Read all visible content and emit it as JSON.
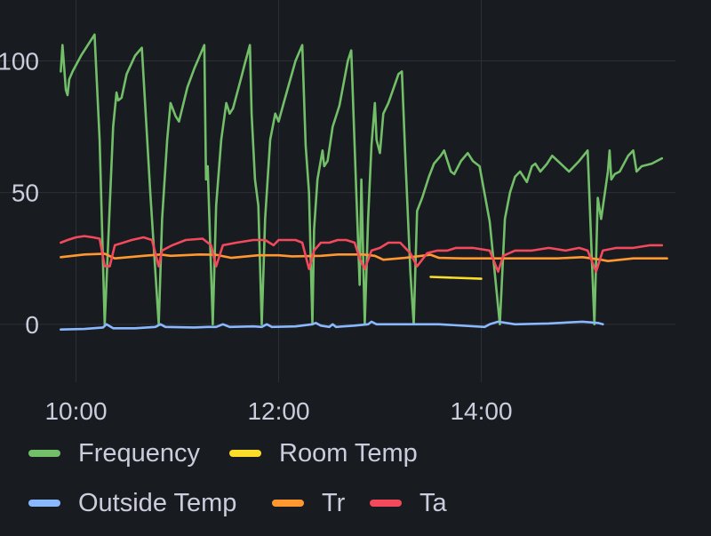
{
  "colors": {
    "background": "#181b1f",
    "grid": "#2c3036",
    "text": "#ccccdc"
  },
  "chart_data": {
    "type": "line",
    "title": "",
    "xlabel": "",
    "ylabel": "",
    "xlim": [
      "09:35",
      "15:55"
    ],
    "ylim": [
      -22,
      113
    ],
    "x_ticks": [
      "10:00",
      "12:00",
      "14:00"
    ],
    "y_ticks": [
      "0",
      "50",
      "100"
    ],
    "grid": true,
    "legend_placement": "bottom",
    "series": [
      {
        "name": "Frequency",
        "color": "#73bf69",
        "points": [
          [
            "09:51",
            96
          ],
          [
            "09:52",
            106
          ],
          [
            "09:54",
            89
          ],
          [
            "09:55",
            87
          ],
          [
            "09:56",
            93
          ],
          [
            "09:58",
            96
          ],
          [
            "10:03",
            102
          ],
          [
            "10:11",
            110
          ],
          [
            "10:14",
            70
          ],
          [
            "10:17",
            0
          ],
          [
            "10:19",
            30
          ],
          [
            "10:22",
            75
          ],
          [
            "10:24",
            88
          ],
          [
            "10:25",
            85
          ],
          [
            "10:27",
            86
          ],
          [
            "10:30",
            95
          ],
          [
            "10:35",
            102
          ],
          [
            "10:39",
            105
          ],
          [
            "10:44",
            50
          ],
          [
            "10:49",
            0
          ],
          [
            "10:51",
            40
          ],
          [
            "10:54",
            70
          ],
          [
            "10:56",
            84
          ],
          [
            "10:59",
            79
          ],
          [
            "11:01",
            77
          ],
          [
            "11:06",
            90
          ],
          [
            "11:10",
            97
          ],
          [
            "11:16",
            106
          ],
          [
            "11:17",
            55
          ],
          [
            "11:18",
            60
          ],
          [
            "11:21",
            0
          ],
          [
            "11:23",
            45
          ],
          [
            "11:26",
            70
          ],
          [
            "11:29",
            84
          ],
          [
            "11:31",
            80
          ],
          [
            "11:33",
            82
          ],
          [
            "11:38",
            94
          ],
          [
            "11:40",
            99
          ],
          [
            "11:43",
            106
          ],
          [
            "11:44",
            80
          ],
          [
            "11:46",
            55
          ],
          [
            "11:48",
            45
          ],
          [
            "11:50",
            0
          ],
          [
            "11:52",
            40
          ],
          [
            "11:55",
            70
          ],
          [
            "11:58",
            80
          ],
          [
            "12:00",
            77
          ],
          [
            "12:03",
            84
          ],
          [
            "12:10",
            100
          ],
          [
            "12:14",
            106
          ],
          [
            "12:16",
            68
          ],
          [
            "12:18",
            50
          ],
          [
            "12:20",
            0
          ],
          [
            "12:21",
            36
          ],
          [
            "12:23",
            55
          ],
          [
            "12:26",
            66
          ],
          [
            "12:27",
            60
          ],
          [
            "12:29",
            62
          ],
          [
            "12:32",
            75
          ],
          [
            "12:36",
            83
          ],
          [
            "12:41",
            100
          ],
          [
            "12:43",
            104
          ],
          [
            "12:46",
            50
          ],
          [
            "12:48",
            15
          ],
          [
            "12:49",
            55
          ],
          [
            "12:51",
            0
          ],
          [
            "12:53",
            40
          ],
          [
            "12:55",
            68
          ],
          [
            "12:57",
            84
          ],
          [
            "12:58",
            70
          ],
          [
            "13:00",
            65
          ],
          [
            "13:02",
            80
          ],
          [
            "13:05",
            84
          ],
          [
            "13:11",
            95
          ],
          [
            "13:13",
            96
          ],
          [
            "13:15",
            64
          ],
          [
            "13:18",
            20
          ],
          [
            "13:20",
            0
          ],
          [
            "13:22",
            43
          ],
          [
            "13:25",
            48
          ],
          [
            "13:29",
            56
          ],
          [
            "13:32",
            61
          ],
          [
            "13:36",
            64
          ],
          [
            "13:38",
            66
          ],
          [
            "13:42",
            58
          ],
          [
            "13:44",
            57
          ],
          [
            "13:48",
            62
          ],
          [
            "13:52",
            65
          ],
          [
            "13:55",
            62
          ],
          [
            "13:59",
            60
          ],
          [
            "14:05",
            39
          ],
          [
            "14:11",
            0
          ],
          [
            "14:14",
            40
          ],
          [
            "14:17",
            50
          ],
          [
            "14:20",
            56
          ],
          [
            "14:23",
            58
          ],
          [
            "14:27",
            54
          ],
          [
            "14:30",
            60
          ],
          [
            "14:32",
            61
          ],
          [
            "14:35",
            58
          ],
          [
            "14:39",
            61
          ],
          [
            "14:42",
            64
          ],
          [
            "14:47",
            61
          ],
          [
            "14:52",
            58
          ],
          [
            "14:58",
            62
          ],
          [
            "15:03",
            66
          ],
          [
            "15:07",
            0
          ],
          [
            "15:09",
            48
          ],
          [
            "15:11",
            40
          ],
          [
            "15:15",
            58
          ],
          [
            "15:16",
            66
          ],
          [
            "15:17",
            55
          ],
          [
            "15:19",
            57
          ],
          [
            "15:22",
            58
          ],
          [
            "15:27",
            64
          ],
          [
            "15:30",
            66
          ],
          [
            "15:32",
            58
          ],
          [
            "15:35",
            60
          ],
          [
            "15:41",
            61
          ],
          [
            "15:47",
            63
          ]
        ]
      },
      {
        "name": "Room Temp",
        "color": "#fade2a",
        "points": [
          [
            "13:30",
            18
          ],
          [
            "14:00",
            17.3
          ]
        ]
      },
      {
        "name": "Outside Temp",
        "color": "#8ab8ff",
        "points": [
          [
            "09:51",
            -2
          ],
          [
            "10:05",
            -1.8
          ],
          [
            "10:16",
            -1.2
          ],
          [
            "10:18",
            0
          ],
          [
            "10:22",
            -1.5
          ],
          [
            "10:35",
            -1.5
          ],
          [
            "10:47",
            -1
          ],
          [
            "10:50",
            0
          ],
          [
            "10:53",
            -1
          ],
          [
            "11:10",
            -1.2
          ],
          [
            "11:18",
            -1
          ],
          [
            "11:23",
            -1
          ],
          [
            "11:27",
            0
          ],
          [
            "11:31",
            -1
          ],
          [
            "11:45",
            -0.8
          ],
          [
            "11:50",
            -1
          ],
          [
            "11:53",
            0
          ],
          [
            "11:56",
            -1
          ],
          [
            "12:10",
            -0.8
          ],
          [
            "12:20",
            0
          ],
          [
            "12:22",
            0.5
          ],
          [
            "12:25",
            -0.5
          ],
          [
            "12:30",
            -1
          ],
          [
            "12:32",
            0
          ],
          [
            "12:34",
            -1
          ],
          [
            "12:45",
            -0.5
          ],
          [
            "12:53",
            0
          ],
          [
            "12:55",
            1
          ],
          [
            "12:58",
            0
          ],
          [
            "13:10",
            0
          ],
          [
            "13:20",
            0
          ],
          [
            "13:35",
            0
          ],
          [
            "14:02",
            -1
          ],
          [
            "14:05",
            0
          ],
          [
            "14:10",
            1
          ],
          [
            "14:20",
            0
          ],
          [
            "14:40",
            0.3
          ],
          [
            "15:00",
            1
          ],
          [
            "15:09",
            0.5
          ],
          [
            "15:12",
            0
          ]
        ]
      },
      {
        "name": "Tr",
        "color": "#ff9830",
        "points": [
          [
            "09:51",
            25.5
          ],
          [
            "10:05",
            26.5
          ],
          [
            "10:17",
            26.8
          ],
          [
            "10:23",
            25
          ],
          [
            "10:40",
            26
          ],
          [
            "10:50",
            26.5
          ],
          [
            "10:56",
            26
          ],
          [
            "11:13",
            26.5
          ],
          [
            "11:23",
            26.4
          ],
          [
            "11:32",
            25.2
          ],
          [
            "11:48",
            26.2
          ],
          [
            "12:00",
            26.2
          ],
          [
            "12:08",
            25.8
          ],
          [
            "12:25",
            26
          ],
          [
            "12:35",
            26.5
          ],
          [
            "12:50",
            26.5
          ],
          [
            "12:57",
            26
          ],
          [
            "13:02",
            24.5
          ],
          [
            "13:15",
            25.2
          ],
          [
            "13:30",
            26.4
          ],
          [
            "13:35",
            25.2
          ],
          [
            "13:50",
            25
          ],
          [
            "14:05",
            25
          ],
          [
            "14:20",
            25
          ],
          [
            "14:45",
            25
          ],
          [
            "15:00",
            25.5
          ],
          [
            "15:10",
            24.6
          ],
          [
            "15:15",
            24
          ],
          [
            "15:30",
            25
          ],
          [
            "15:50",
            25
          ]
        ]
      },
      {
        "name": "Ta",
        "color": "#f2495c",
        "points": [
          [
            "09:51",
            31
          ],
          [
            "09:55",
            32
          ],
          [
            "10:00",
            33
          ],
          [
            "10:05",
            33.5
          ],
          [
            "10:10",
            33
          ],
          [
            "10:14",
            32.5
          ],
          [
            "10:17",
            22
          ],
          [
            "10:20",
            22
          ],
          [
            "10:23",
            30
          ],
          [
            "10:28",
            31
          ],
          [
            "10:33",
            32
          ],
          [
            "10:40",
            33
          ],
          [
            "10:45",
            32
          ],
          [
            "10:49",
            22
          ],
          [
            "10:51",
            28
          ],
          [
            "10:57",
            30
          ],
          [
            "11:05",
            32
          ],
          [
            "11:15",
            32.5
          ],
          [
            "11:20",
            30
          ],
          [
            "11:23",
            22
          ],
          [
            "11:27",
            30
          ],
          [
            "11:35",
            31
          ],
          [
            "11:45",
            32
          ],
          [
            "11:52",
            32
          ],
          [
            "11:57",
            30
          ],
          [
            "12:00",
            32
          ],
          [
            "12:05",
            32
          ],
          [
            "12:10",
            32
          ],
          [
            "12:14",
            31
          ],
          [
            "12:18",
            21
          ],
          [
            "12:21",
            28
          ],
          [
            "12:25",
            31
          ],
          [
            "12:30",
            31
          ],
          [
            "12:35",
            32
          ],
          [
            "12:40",
            32
          ],
          [
            "12:45",
            31
          ],
          [
            "12:48",
            25
          ],
          [
            "12:51",
            21
          ],
          [
            "12:55",
            28
          ],
          [
            "13:00",
            29
          ],
          [
            "13:05",
            31
          ],
          [
            "13:12",
            31
          ],
          [
            "13:18",
            27
          ],
          [
            "13:22",
            22
          ],
          [
            "13:28",
            27
          ],
          [
            "13:34",
            28
          ],
          [
            "13:40",
            28
          ],
          [
            "13:45",
            29
          ],
          [
            "13:55",
            29
          ],
          [
            "14:05",
            28
          ],
          [
            "14:10",
            20
          ],
          [
            "14:13",
            26
          ],
          [
            "14:20",
            28
          ],
          [
            "14:30",
            28
          ],
          [
            "14:40",
            29
          ],
          [
            "14:50",
            28
          ],
          [
            "14:58",
            29
          ],
          [
            "15:03",
            28
          ],
          [
            "15:08",
            20
          ],
          [
            "15:12",
            28
          ],
          [
            "15:20",
            29
          ],
          [
            "15:30",
            29
          ],
          [
            "15:40",
            30
          ],
          [
            "15:47",
            30
          ]
        ]
      }
    ]
  }
}
